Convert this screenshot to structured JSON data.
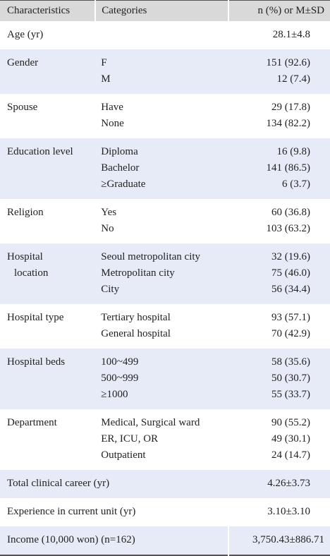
{
  "table": {
    "header": [
      "Characteristics",
      "Categories",
      "n (%) or M±SD"
    ],
    "rows": [
      {
        "characteristic": [
          "Age (yr)"
        ],
        "categories": [],
        "values": [
          "28.1±4.8"
        ]
      },
      {
        "characteristic": [
          "Gender"
        ],
        "categories": [
          "F",
          "M"
        ],
        "values": [
          "151 (92.6)",
          "12 (7.4)"
        ]
      },
      {
        "characteristic": [
          "Spouse"
        ],
        "categories": [
          "Have",
          "None"
        ],
        "values": [
          "29 (17.8)",
          "134 (82.2)"
        ]
      },
      {
        "characteristic": [
          "Education level"
        ],
        "categories": [
          "Diploma",
          "Bachelor",
          "≥Graduate"
        ],
        "values": [
          "16 (9.8)",
          "141 (86.5)",
          "6 (3.7)"
        ]
      },
      {
        "characteristic": [
          "Religion"
        ],
        "categories": [
          "Yes",
          "No"
        ],
        "values": [
          "60 (36.8)",
          "103 (63.2)"
        ]
      },
      {
        "characteristic": [
          "Hospital",
          "location"
        ],
        "categories": [
          "Seoul metropolitan city",
          "Metropolitan city",
          "City"
        ],
        "values": [
          "32 (19.6)",
          "75 (46.0)",
          "56 (34.4)"
        ]
      },
      {
        "characteristic": [
          "Hospital type"
        ],
        "categories": [
          "Tertiary hospital",
          "General hospital"
        ],
        "values": [
          "93 (57.1)",
          "70 (42.9)"
        ]
      },
      {
        "characteristic": [
          "Hospital beds"
        ],
        "categories": [
          "100~499",
          "500~999",
          "≥1000"
        ],
        "values": [
          "58 (35.6)",
          "50 (30.7)",
          "55 (33.7)"
        ]
      },
      {
        "characteristic": [
          "Department"
        ],
        "categories": [
          "Medical, Surgical ward",
          "ER, ICU, OR",
          "Outpatient"
        ],
        "values": [
          "90 (55.2)",
          "49 (30.1)",
          "24 (14.7)"
        ]
      },
      {
        "characteristic": [
          "Total clinical career (yr)"
        ],
        "categories": [],
        "values": [
          "4.26±3.73"
        ]
      },
      {
        "characteristic": [
          "Experience in current unit (yr)"
        ],
        "categories": [],
        "values": [
          "3.10±3.10"
        ]
      },
      {
        "characteristic": [
          "Income (10,000 won) (n=162)"
        ],
        "categories": [],
        "values": [
          "3,750.43±886.71"
        ]
      }
    ]
  }
}
